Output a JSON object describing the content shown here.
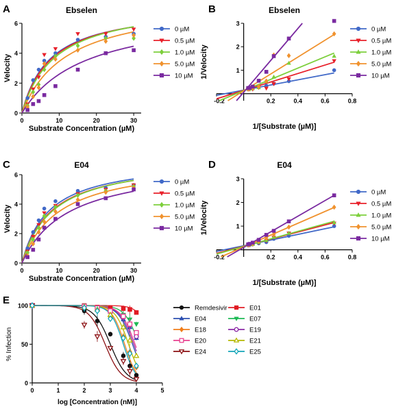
{
  "chart_data": [
    {
      "panel": "A",
      "type": "scatter",
      "title": "Ebselen",
      "xlabel": "Substrate Concentration (µM)",
      "ylabel": "Velocity",
      "xlim": [
        0,
        32
      ],
      "ylim": [
        0,
        6
      ],
      "xticks": [
        0,
        10,
        20,
        30
      ],
      "yticks": [
        0,
        2,
        4,
        6
      ],
      "grid": false,
      "legend": "right",
      "curve": "michaelis-menten",
      "x": [
        1.5,
        3,
        4.5,
        6,
        9,
        15,
        22.5,
        30
      ],
      "series": [
        {
          "name": "0 µM",
          "color": "#4169c8",
          "marker": "circle",
          "vmax": 7.2,
          "km": 7.5,
          "values": [
            1.0,
            2.2,
            2.9,
            3.5,
            4.0,
            4.9,
            5.1,
            5.3
          ]
        },
        {
          "name": "0.5 µM",
          "color": "#e8202a",
          "marker": "triangle-down",
          "vmax": 7.3,
          "km": 8.0,
          "values": [
            0.6,
            1.6,
            2.4,
            3.9,
            4.3,
            5.3,
            5.3,
            5.6
          ]
        },
        {
          "name": "1.0 µM",
          "color": "#7dcf3c",
          "marker": "diamond",
          "vmax": 7.5,
          "km": 9.0,
          "values": [
            0.5,
            1.4,
            1.9,
            2.9,
            3.8,
            4.5,
            5.0,
            5.0
          ]
        },
        {
          "name": "5.0 µM",
          "color": "#f0922e",
          "marker": "diamond",
          "vmax": 7.6,
          "km": 12.0,
          "values": [
            0.4,
            1.1,
            1.7,
            3.3,
            3.6,
            4.2,
            4.8,
            5.2
          ]
        },
        {
          "name": "10 µM",
          "color": "#7a2aa0",
          "marker": "square",
          "vmax": 7.0,
          "km": 17.0,
          "values": [
            0.2,
            0.6,
            0.8,
            1.2,
            1.8,
            2.9,
            4.0,
            4.2
          ]
        }
      ]
    },
    {
      "panel": "B",
      "type": "line",
      "title": "Ebselen",
      "xlabel": "1/[Substrate (µM)]",
      "ylabel": "1/Velocity",
      "xlim": [
        -0.2,
        0.8
      ],
      "ylim": [
        -0.3,
        3
      ],
      "xticks": [
        -0.2,
        0.2,
        0.4,
        0.6,
        0.8
      ],
      "yticks": [
        1,
        2,
        3
      ],
      "xtick_labels": [
        "-0.2",
        "0.2",
        "0.4",
        "0.6",
        "0.8"
      ],
      "grid": false,
      "legend": "right",
      "x": [
        0.033,
        0.044,
        0.067,
        0.111,
        0.167,
        0.222,
        0.333,
        0.667
      ],
      "series": [
        {
          "name": "0 µM",
          "color": "#4169c8",
          "marker": "circle",
          "slope": 1.1,
          "intercept": 0.15,
          "values": [
            0.19,
            0.2,
            0.25,
            0.28,
            0.34,
            0.43,
            0.53,
            1.0
          ]
        },
        {
          "name": "0.5 µM",
          "color": "#e8202a",
          "marker": "triangle-down",
          "slope": 1.8,
          "intercept": 0.14,
          "values": [
            0.18,
            0.19,
            0.19,
            0.26,
            0.23,
            0.42,
            0.63,
            1.4
          ]
        },
        {
          "name": "1.0 µM",
          "color": "#7dcf3c",
          "marker": "triangle",
          "slope": 2.4,
          "intercept": 0.13,
          "values": [
            0.2,
            0.2,
            0.22,
            0.26,
            0.53,
            0.71,
            1.3,
            1.6
          ]
        },
        {
          "name": "5.0 µM",
          "color": "#f0922e",
          "marker": "diamond",
          "slope": 3.6,
          "intercept": 0.12,
          "values": [
            0.19,
            0.21,
            0.24,
            0.3,
            0.54,
            1.65,
            1.62,
            2.55
          ]
        },
        {
          "name": "10 µM",
          "color": "#7a2aa0",
          "marker": "square",
          "slope": 6.8,
          "intercept": 0.06,
          "values": [
            0.24,
            0.25,
            0.3,
            0.55,
            0.93,
            1.6,
            2.35,
            3.1
          ]
        }
      ]
    },
    {
      "panel": "C",
      "type": "scatter",
      "title": "E04",
      "xlabel": "Substrate Concentration (µM)",
      "ylabel": "Velocity",
      "xlim": [
        0,
        32
      ],
      "ylim": [
        0,
        6
      ],
      "xticks": [
        0,
        10,
        20,
        30
      ],
      "yticks": [
        0,
        2,
        4,
        6
      ],
      "grid": false,
      "legend": "right",
      "curve": "michaelis-menten",
      "x": [
        1.5,
        3,
        4.5,
        6,
        9,
        15,
        22.5,
        30
      ],
      "series": [
        {
          "name": "0 µM",
          "color": "#4169c8",
          "marker": "circle",
          "vmax": 7.1,
          "km": 7.3,
          "values": [
            1.0,
            2.1,
            2.9,
            3.7,
            4.2,
            4.9,
            5.1,
            5.3
          ]
        },
        {
          "name": "0.5 µM",
          "color": "#e8202a",
          "marker": "triangle-down",
          "vmax": 7.1,
          "km": 8.0,
          "values": [
            0.8,
            1.8,
            2.6,
            3.4,
            3.9,
            4.7,
            5.0,
            5.3
          ]
        },
        {
          "name": "1.0 µM",
          "color": "#7dcf3c",
          "marker": "diamond",
          "vmax": 7.2,
          "km": 8.5,
          "values": [
            0.7,
            1.6,
            2.4,
            3.2,
            3.8,
            4.6,
            4.9,
            5.2
          ]
        },
        {
          "name": "5.0 µM",
          "color": "#f0922e",
          "marker": "diamond",
          "vmax": 7.0,
          "km": 10.0,
          "values": [
            0.5,
            1.3,
            2.1,
            2.8,
            3.5,
            4.3,
            4.8,
            5.1
          ]
        },
        {
          "name": "10 µM",
          "color": "#7a2aa0",
          "marker": "square",
          "vmax": 6.9,
          "km": 12.5,
          "values": [
            0.4,
            0.9,
            1.6,
            2.4,
            3.0,
            4.0,
            4.4,
            5.0
          ]
        }
      ]
    },
    {
      "panel": "D",
      "type": "line",
      "title": "E04",
      "xlabel": "1/[Substrate (µM)]",
      "ylabel": "1/Velocity",
      "xlim": [
        -0.2,
        0.8
      ],
      "ylim": [
        -0.3,
        3
      ],
      "xticks": [
        -0.2,
        0.2,
        0.4,
        0.6,
        0.8
      ],
      "yticks": [
        1,
        2,
        3
      ],
      "xtick_labels": [
        "-0.2",
        "0.2",
        "0.4",
        "0.6",
        "0.8"
      ],
      "grid": false,
      "legend": "right",
      "x": [
        0.033,
        0.044,
        0.067,
        0.111,
        0.167,
        0.222,
        0.333,
        0.667
      ],
      "series": [
        {
          "name": "0 µM",
          "color": "#4169c8",
          "marker": "circle",
          "slope": 1.2,
          "intercept": 0.17,
          "values": [
            0.19,
            0.2,
            0.23,
            0.27,
            0.32,
            0.46,
            0.59,
            1.0
          ]
        },
        {
          "name": "0.5 µM",
          "color": "#e8202a",
          "marker": "triangle-down",
          "slope": 1.5,
          "intercept": 0.15,
          "values": [
            0.19,
            0.2,
            0.23,
            0.3,
            0.38,
            0.52,
            0.7,
            1.12
          ]
        },
        {
          "name": "1.0 µM",
          "color": "#7dcf3c",
          "marker": "triangle",
          "slope": 1.6,
          "intercept": 0.14,
          "values": [
            0.2,
            0.21,
            0.23,
            0.31,
            0.4,
            0.53,
            0.7,
            1.15
          ]
        },
        {
          "name": "5.0 µM",
          "color": "#f0922e",
          "marker": "diamond",
          "slope": 2.5,
          "intercept": 0.12,
          "values": [
            0.2,
            0.22,
            0.26,
            0.36,
            0.5,
            0.65,
            0.96,
            1.8
          ]
        },
        {
          "name": "10 µM",
          "color": "#7a2aa0",
          "marker": "square",
          "slope": 3.3,
          "intercept": 0.1,
          "values": [
            0.23,
            0.25,
            0.3,
            0.42,
            0.63,
            0.8,
            1.2,
            2.3
          ]
        }
      ]
    },
    {
      "panel": "E",
      "type": "line",
      "title": "",
      "xlabel": "log [Concentration (nM)]",
      "ylabel": "% Infection",
      "xlim": [
        0,
        5
      ],
      "ylim": [
        0,
        100
      ],
      "xticks": [
        0,
        1,
        2,
        3,
        4,
        5
      ],
      "yticks": [
        0,
        50,
        100
      ],
      "grid": false,
      "legend": "right-two-columns",
      "curve": "dose-response",
      "x": [
        0,
        2,
        2.5,
        3,
        3.5,
        3.75,
        4
      ],
      "series": [
        {
          "name": "Remdesivir",
          "color": "#111111",
          "marker": "circle",
          "logic50": 3.0,
          "hill": 1.4,
          "values": [
            100,
            93,
            80,
            63,
            35,
            22,
            10
          ]
        },
        {
          "name": "E01",
          "color": "#e01b24",
          "marker": "square",
          "logic50": 4.6,
          "hill": 1.8,
          "values": [
            100,
            100,
            98,
            97,
            96,
            95,
            91
          ]
        },
        {
          "name": "E04",
          "color": "#2c4fb0",
          "marker": "triangle",
          "logic50": 3.85,
          "hill": 1.6,
          "values": [
            100,
            99,
            96,
            92,
            82,
            72,
            58
          ]
        },
        {
          "name": "E07",
          "color": "#1db954",
          "marker": "triangle-down",
          "logic50": 4.1,
          "hill": 1.6,
          "values": [
            100,
            100,
            96,
            92,
            88,
            82,
            76
          ]
        },
        {
          "name": "E18",
          "color": "#f07d1a",
          "marker": "diamond",
          "logic50": 3.55,
          "hill": 1.8,
          "values": [
            100,
            98,
            94,
            85,
            60,
            40,
            20
          ]
        },
        {
          "name": "E19",
          "color": "#8b2aa6",
          "marker": "circle-open",
          "logic50": 3.9,
          "hill": 1.6,
          "values": [
            100,
            99,
            97,
            92,
            85,
            75,
            60
          ]
        },
        {
          "name": "E20",
          "color": "#e8408f",
          "marker": "square-open",
          "logic50": 3.95,
          "hill": 1.6,
          "values": [
            100,
            99,
            97,
            93,
            86,
            76,
            65
          ]
        },
        {
          "name": "E21",
          "color": "#b5b800",
          "marker": "triangle-open",
          "logic50": 3.7,
          "hill": 1.7,
          "values": [
            100,
            98,
            95,
            88,
            72,
            55,
            35
          ]
        },
        {
          "name": "E24",
          "color": "#8b0f12",
          "marker": "triangle-down-open",
          "logic50": 2.8,
          "hill": 1.4,
          "values": [
            100,
            75,
            60,
            45,
            28,
            15,
            5
          ]
        },
        {
          "name": "E25",
          "color": "#13a5b8",
          "marker": "diamond-open",
          "logic50": 3.5,
          "hill": 1.8,
          "values": [
            100,
            97,
            93,
            83,
            58,
            38,
            22
          ]
        }
      ]
    }
  ]
}
